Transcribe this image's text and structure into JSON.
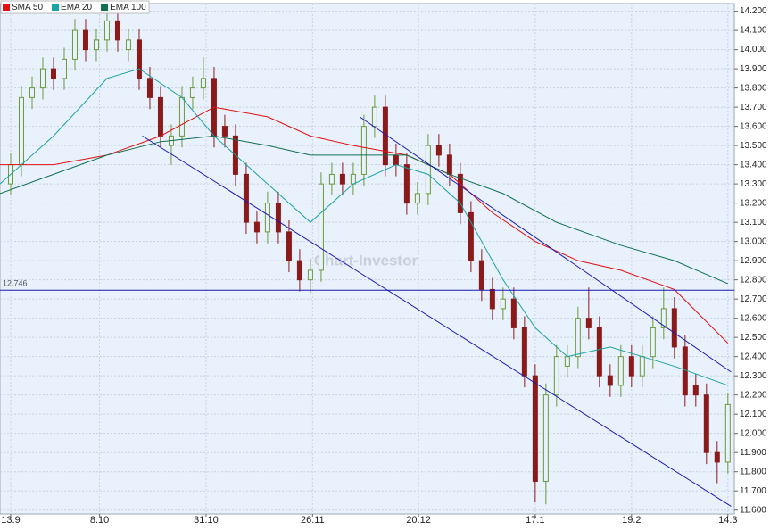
{
  "chart_data": {
    "type": "candlestick",
    "x": [
      0,
      1,
      2,
      3,
      4,
      5,
      6,
      7,
      8,
      9,
      10,
      11,
      12,
      13,
      14,
      15,
      16,
      17,
      18,
      19,
      20,
      21,
      22,
      23,
      24,
      25,
      26,
      27,
      28,
      29,
      30,
      31,
      32,
      33,
      34,
      35,
      36,
      37,
      38,
      39,
      40,
      41,
      42,
      43,
      44,
      45,
      46,
      47,
      48,
      49,
      50,
      51,
      52,
      53,
      54,
      55,
      56,
      57,
      58,
      59,
      60,
      61,
      62,
      63,
      64,
      65,
      66,
      67
    ],
    "open": [
      13.3,
      13.4,
      13.75,
      13.8,
      13.9,
      13.85,
      13.95,
      14.1,
      14.0,
      14.05,
      14.15,
      14.0,
      14.05,
      13.85,
      13.75,
      13.5,
      13.55,
      13.75,
      13.8,
      13.85,
      13.6,
      13.55,
      13.35,
      13.1,
      13.05,
      13.2,
      13.05,
      12.9,
      12.8,
      12.85,
      13.3,
      13.35,
      13.3,
      13.35,
      13.6,
      13.7,
      13.45,
      13.4,
      13.2,
      13.25,
      13.5,
      13.45,
      13.35,
      13.15,
      12.9,
      12.75,
      12.65,
      12.7,
      12.55,
      12.3,
      11.75,
      12.2,
      12.35,
      12.4,
      12.6,
      12.55,
      12.3,
      12.25,
      12.4,
      12.3,
      12.4,
      12.55,
      12.65,
      12.45,
      12.25,
      12.2,
      11.9,
      11.85
    ],
    "high": [
      13.46,
      13.81,
      13.86,
      13.96,
      13.96,
      14.01,
      14.16,
      14.16,
      14.11,
      14.21,
      14.21,
      14.11,
      14.11,
      13.91,
      13.81,
      13.61,
      13.81,
      13.86,
      13.96,
      13.91,
      13.66,
      13.61,
      13.41,
      13.16,
      13.26,
      13.26,
      13.11,
      12.96,
      12.91,
      13.36,
      13.41,
      13.41,
      13.41,
      13.66,
      13.76,
      13.76,
      13.51,
      13.46,
      13.31,
      13.56,
      13.56,
      13.51,
      13.41,
      13.21,
      12.96,
      12.81,
      12.76,
      12.76,
      12.61,
      12.36,
      12.26,
      12.46,
      12.46,
      12.66,
      12.76,
      12.61,
      12.36,
      12.46,
      12.46,
      12.46,
      12.61,
      12.76,
      12.71,
      12.51,
      12.31,
      12.26,
      11.96,
      12.21
    ],
    "low": [
      13.24,
      13.34,
      13.69,
      13.74,
      13.79,
      13.79,
      13.89,
      13.94,
      13.94,
      13.99,
      13.99,
      13.94,
      13.79,
      13.69,
      13.49,
      13.4,
      13.49,
      13.69,
      13.74,
      13.49,
      13.49,
      13.29,
      13.04,
      12.99,
      12.99,
      12.99,
      12.84,
      12.74,
      12.73,
      12.79,
      13.24,
      13.24,
      13.24,
      13.29,
      13.54,
      13.34,
      13.34,
      13.14,
      13.14,
      13.19,
      13.39,
      13.29,
      13.09,
      12.84,
      12.69,
      12.59,
      12.59,
      12.49,
      12.24,
      11.64,
      11.63,
      12.14,
      12.29,
      12.34,
      12.49,
      12.24,
      12.19,
      12.19,
      12.24,
      12.24,
      12.34,
      12.49,
      12.39,
      12.14,
      12.14,
      11.84,
      11.74,
      11.79
    ],
    "close": [
      13.4,
      13.75,
      13.8,
      13.9,
      13.85,
      13.95,
      14.1,
      14.0,
      14.05,
      14.15,
      14.05,
      14.05,
      13.85,
      13.75,
      13.55,
      13.55,
      13.75,
      13.8,
      13.85,
      13.55,
      13.55,
      13.35,
      13.1,
      13.05,
      13.2,
      13.05,
      12.9,
      12.8,
      12.85,
      13.3,
      13.35,
      13.3,
      13.35,
      13.6,
      13.7,
      13.4,
      13.4,
      13.2,
      13.25,
      13.5,
      13.45,
      13.35,
      13.15,
      12.9,
      12.75,
      12.65,
      12.7,
      12.55,
      12.3,
      11.75,
      12.2,
      12.4,
      12.4,
      12.6,
      12.55,
      12.3,
      12.25,
      12.4,
      12.3,
      12.4,
      12.55,
      12.65,
      12.45,
      12.2,
      12.2,
      11.9,
      11.85,
      12.15
    ],
    "up_color": "#6a9a3a",
    "down_color": "#8b1a1a",
    "series": [
      {
        "name": "SMA 50",
        "color": "#e01010",
        "x": [
          -1,
          4,
          9,
          14,
          19,
          24,
          28,
          32,
          37,
          41,
          45,
          49,
          53,
          57,
          62,
          67
        ],
        "values": [
          13.4,
          13.4,
          13.45,
          13.55,
          13.7,
          13.65,
          13.55,
          13.5,
          13.45,
          13.35,
          13.15,
          13.0,
          12.9,
          12.85,
          12.75,
          12.47
        ]
      },
      {
        "name": "EMA 20",
        "color": "#1aa3a3",
        "x": [
          -1,
          4,
          9,
          12,
          16,
          19,
          24,
          28,
          32,
          36,
          39,
          42,
          46,
          49,
          52,
          56,
          59,
          62,
          67
        ],
        "values": [
          13.3,
          13.55,
          13.85,
          13.9,
          13.75,
          13.55,
          13.3,
          13.1,
          13.3,
          13.4,
          13.35,
          13.2,
          12.8,
          12.55,
          12.4,
          12.45,
          12.4,
          12.35,
          12.25
        ]
      },
      {
        "name": "EMA 100",
        "color": "#107050",
        "x": [
          -1,
          4,
          9,
          14,
          19,
          24,
          28,
          32,
          37,
          41,
          46,
          51,
          57,
          62,
          67
        ],
        "values": [
          13.25,
          13.35,
          13.45,
          13.52,
          13.55,
          13.5,
          13.45,
          13.45,
          13.45,
          13.35,
          13.25,
          13.1,
          12.98,
          12.9,
          12.78
        ]
      }
    ],
    "xlim": [
      -1,
      67.6
    ],
    "ylim": [
      11.58,
      14.24
    ],
    "xticks": [
      {
        "value": 0,
        "label": "13.9"
      },
      {
        "value": 8.3,
        "label": "8.10"
      },
      {
        "value": 18.25,
        "label": "31.10"
      },
      {
        "value": 28.2,
        "label": "26.11"
      },
      {
        "value": 38.1,
        "label": "20.12"
      },
      {
        "value": 49,
        "label": "17.1"
      },
      {
        "value": 58,
        "label": "19.2"
      },
      {
        "value": 67,
        "label": "14.3"
      }
    ],
    "yticks": [
      {
        "value": 11.6,
        "label": "11.600"
      },
      {
        "value": 11.7,
        "label": "11.700"
      },
      {
        "value": 11.8,
        "label": "11.800"
      },
      {
        "value": 11.9,
        "label": "11.900"
      },
      {
        "value": 12,
        "label": "12.000"
      },
      {
        "value": 12.1,
        "label": "12.100"
      },
      {
        "value": 12.2,
        "label": "12.200"
      },
      {
        "value": 12.3,
        "label": "12.300"
      },
      {
        "value": 12.4,
        "label": "12.400"
      },
      {
        "value": 12.5,
        "label": "12.500"
      },
      {
        "value": 12.6,
        "label": "12.600"
      },
      {
        "value": 12.7,
        "label": "12.700"
      },
      {
        "value": 12.8,
        "label": "12.800"
      },
      {
        "value": 12.9,
        "label": "12.900"
      },
      {
        "value": 13,
        "label": "13.000"
      },
      {
        "value": 13.1,
        "label": "13.100"
      },
      {
        "value": 13.2,
        "label": "13.200"
      },
      {
        "value": 13.3,
        "label": "13.300"
      },
      {
        "value": 13.4,
        "label": "13.400"
      },
      {
        "value": 13.5,
        "label": "13.500"
      },
      {
        "value": 13.6,
        "label": "13.600"
      },
      {
        "value": 13.7,
        "label": "13.700"
      },
      {
        "value": 13.8,
        "label": "13.800"
      },
      {
        "value": 13.9,
        "label": "13.900"
      },
      {
        "value": 14,
        "label": "14.000"
      },
      {
        "value": 14.1,
        "label": "14.100"
      },
      {
        "value": 14.2,
        "label": "14.200"
      }
    ],
    "grid": true,
    "hline": {
      "value": 12.746
    },
    "trend_color": "#1a1ab0",
    "trendlines": [
      {
        "x": [
          12.3,
          67.3
        ],
        "y": [
          13.55,
          11.62
        ]
      },
      {
        "x": [
          32.6,
          67.3
        ],
        "y": [
          13.65,
          12.32
        ]
      }
    ],
    "watermark": "Chart-Investor"
  }
}
